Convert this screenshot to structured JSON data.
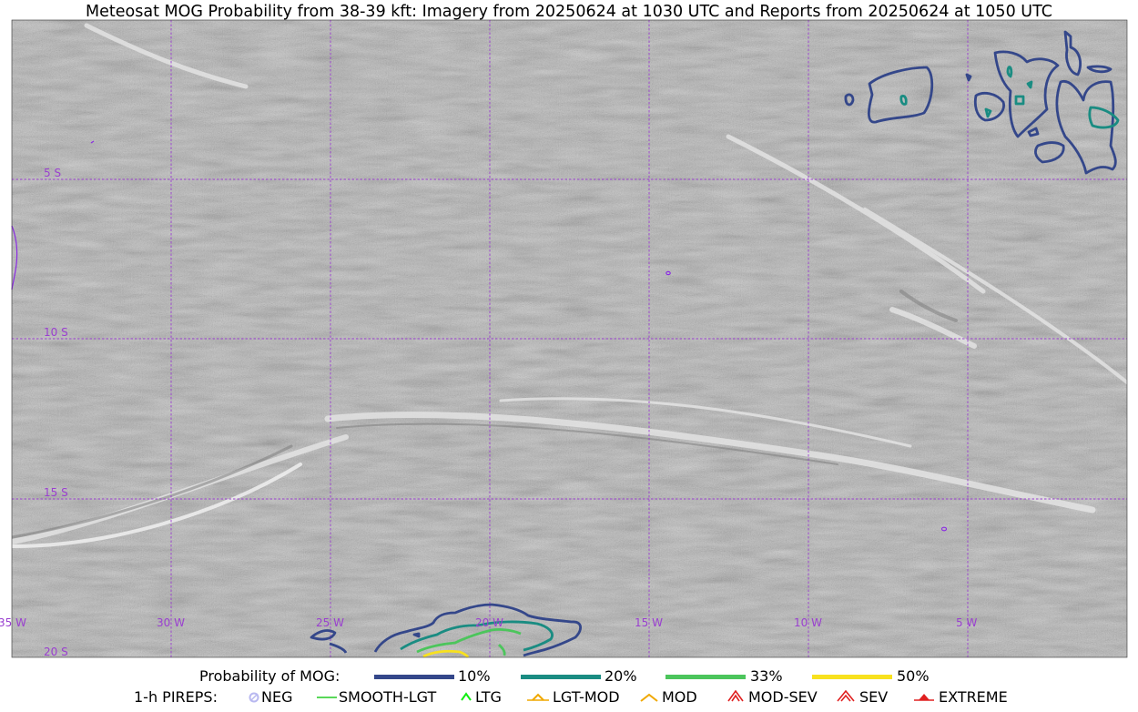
{
  "title": "Meteosat MOG Probability from 38-39 kft: Imagery from 20250624 at 1030 UTC and Reports from 20250624 at 1050 UTC",
  "map": {
    "lon_labels": [
      "35 W",
      "30 W",
      "25 W",
      "20 W",
      "15 W",
      "10 W",
      "5 W"
    ],
    "lat_labels": [
      "5 S",
      "10 S",
      "15 S",
      "20 S"
    ],
    "gridline_color": "#9a3fd0",
    "contour_colors": {
      "p10": "#34478a",
      "p20": "#1a8c82",
      "p33": "#4cc55c",
      "p50": "#f8e11e"
    }
  },
  "legend": {
    "probability": {
      "label": "Probability of MOG:",
      "entries": [
        {
          "label": "10%",
          "color": "#34478a"
        },
        {
          "label": "20%",
          "color": "#1a8c82"
        },
        {
          "label": "33%",
          "color": "#4cc55c"
        },
        {
          "label": "50%",
          "color": "#f8e11e"
        }
      ]
    },
    "pireps": {
      "label": "1-h PIREPS:",
      "entries": [
        {
          "label": "NEG",
          "icon": "neg-circle-icon",
          "color": "#b8b8f0"
        },
        {
          "label": "SMOOTH-LGT",
          "icon": "dash-line-icon",
          "color": "#22cc22"
        },
        {
          "label": "LTG",
          "icon": "caret-icon",
          "color": "#11ee11"
        },
        {
          "label": "LGT-MOD",
          "icon": "caret-bar-icon",
          "color": "#f0a800"
        },
        {
          "label": "MOD",
          "icon": "caret-icon",
          "color": "#f0a800"
        },
        {
          "label": "MOD-SEV",
          "icon": "double-caret-icon",
          "color": "#e02020"
        },
        {
          "label": "SEV",
          "icon": "double-caret-icon",
          "color": "#e02020"
        },
        {
          "label": "EXTREME",
          "icon": "filled-triangle-icon",
          "color": "#e02020"
        }
      ]
    }
  }
}
